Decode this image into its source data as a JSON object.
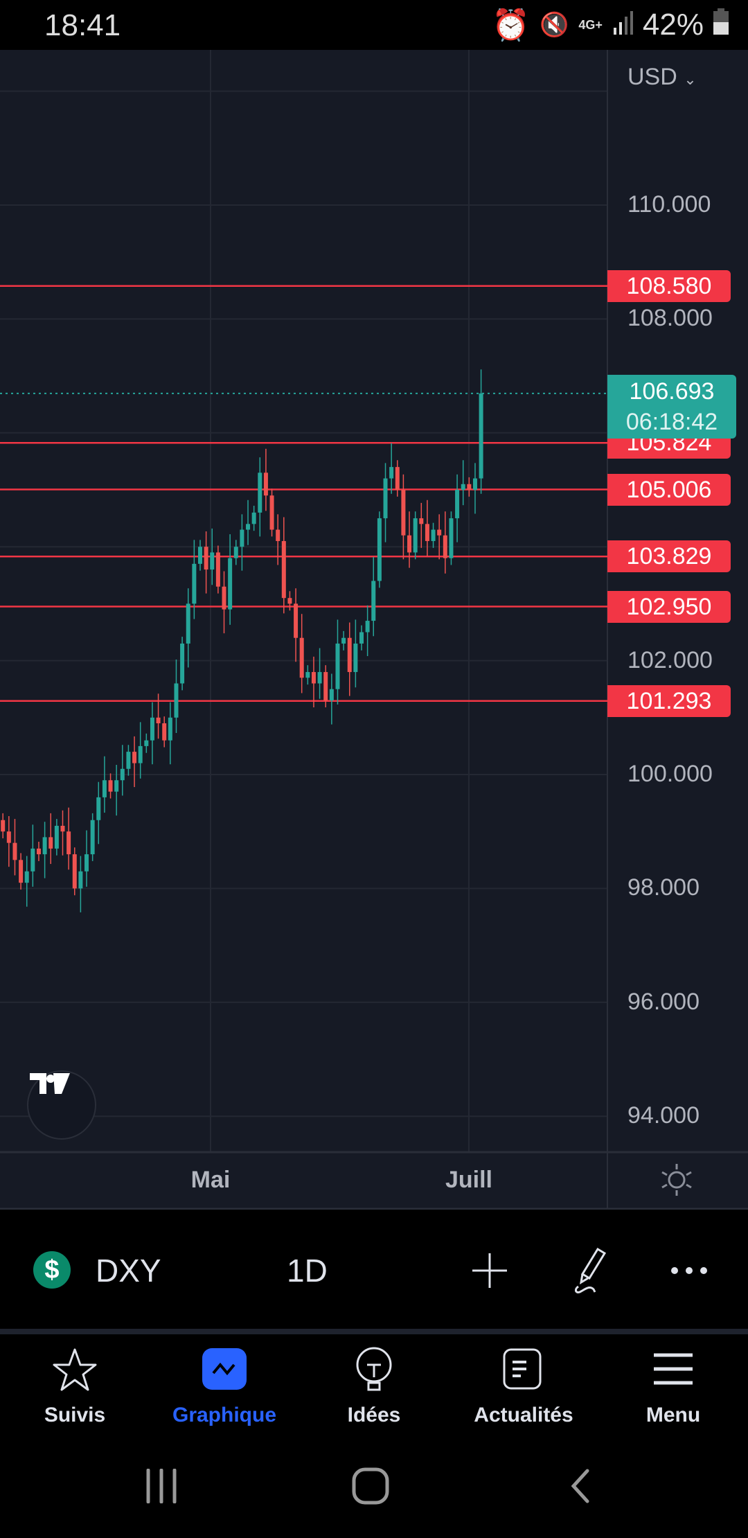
{
  "status_bar": {
    "time": "18:41",
    "battery": "42%",
    "network": "4G+",
    "icons": [
      "alarm-icon",
      "vibrate-icon",
      "network-4g-icon",
      "signal-icon",
      "battery-icon"
    ]
  },
  "chart": {
    "currency": "USD",
    "last_price": "106.693",
    "countdown": "06:18:42",
    "time_labels": [
      "Mai",
      "Juill"
    ],
    "price_axis_labels": [
      "110.000",
      "108.000",
      "102.000",
      "100.000",
      "98.000",
      "96.000",
      "94.000"
    ],
    "colors": {
      "up": "#26a69a",
      "down": "#ef5350",
      "hline": "#f23645",
      "background": "#161a25"
    }
  },
  "chart_data": {
    "type": "candlestick",
    "symbol": "DXY",
    "interval": "1D",
    "ylim": [
      93.5,
      112.5
    ],
    "yticks": [
      94,
      96,
      98,
      100,
      102,
      104,
      106,
      108,
      110,
      112
    ],
    "horizontal_lines": [
      108.58,
      105.824,
      105.006,
      103.829,
      102.95,
      101.293
    ],
    "horizontal_line_labels": [
      "108.580",
      "105.824",
      "105.006",
      "103.829",
      "102.950",
      "101.293"
    ],
    "first_open": 99.2,
    "closes": [
      99.0,
      98.8,
      98.5,
      98.1,
      98.3,
      98.7,
      98.6,
      98.9,
      98.7,
      99.1,
      99.0,
      98.6,
      98.0,
      98.3,
      98.6,
      99.2,
      99.6,
      99.9,
      99.7,
      99.9,
      100.1,
      100.4,
      100.2,
      100.5,
      100.6,
      101.0,
      100.9,
      100.6,
      101.0,
      101.6,
      102.3,
      103.0,
      103.7,
      104.0,
      103.6,
      103.9,
      103.3,
      102.9,
      103.8,
      104.0,
      104.3,
      104.4,
      104.6,
      105.3,
      104.9,
      104.3,
      104.1,
      103.1,
      103.0,
      102.4,
      101.7,
      101.8,
      101.6,
      101.8,
      101.3,
      101.5,
      102.3,
      102.4,
      101.8,
      102.3,
      102.5,
      102.7,
      103.4,
      104.5,
      105.2,
      105.4,
      105.0,
      104.2,
      103.9,
      104.5,
      104.4,
      104.1,
      104.3,
      104.2,
      103.8,
      104.5,
      105.0,
      105.1,
      105.0,
      105.2,
      106.693
    ],
    "last_price": 106.693
  },
  "toolbar": {
    "symbol": "DXY",
    "interval": "1D",
    "symbol_icon": "$"
  },
  "bottom_nav": [
    {
      "label": "Suivis",
      "icon": "star-icon"
    },
    {
      "label": "Graphique",
      "icon": "chart-icon",
      "active": true
    },
    {
      "label": "Idées",
      "icon": "lightbulb-icon"
    },
    {
      "label": "Actualités",
      "icon": "news-icon"
    },
    {
      "label": "Menu",
      "icon": "menu-icon"
    }
  ],
  "accent": "#2962ff"
}
